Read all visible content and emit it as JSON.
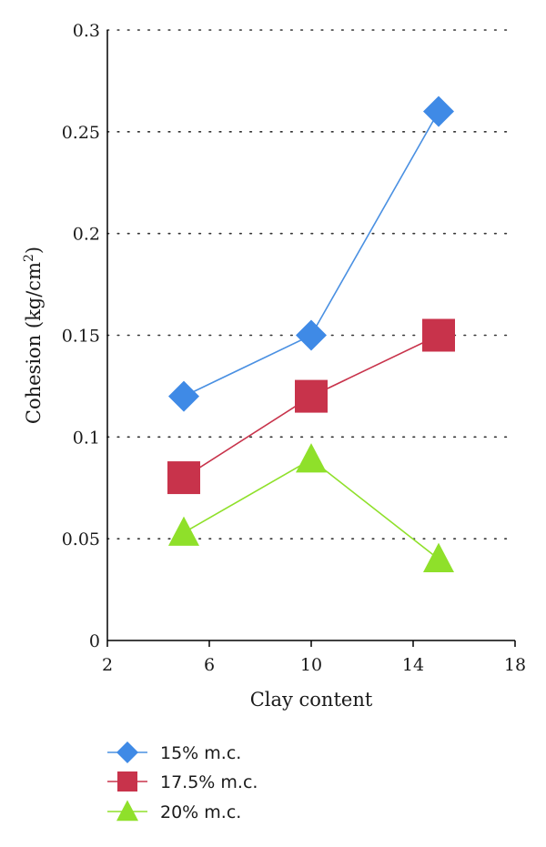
{
  "chart_data": {
    "type": "line",
    "xlabel": "Clay content",
    "ylabel": "Cohesion (kg/cm",
    "ylabel_sup": "2",
    "ylabel_close": ")",
    "xlim": [
      2,
      18
    ],
    "ylim": [
      0,
      0.3
    ],
    "x_ticks": [
      2,
      6,
      10,
      14,
      18
    ],
    "x_tick_labels": [
      "2",
      "6",
      "10",
      "14",
      "18"
    ],
    "y_ticks": [
      0,
      0.05,
      0.1,
      0.15,
      0.2,
      0.25,
      0.3
    ],
    "y_tick_labels": [
      "0",
      "0.05",
      "0.1",
      "0.15",
      "0.2",
      "0.25",
      "0.3"
    ],
    "grid": "horizontal dotted",
    "legend_position": "bottom-left",
    "x": [
      5,
      10,
      15
    ],
    "series": [
      {
        "name": "15% m.c.",
        "values": [
          0.12,
          0.15,
          0.26
        ],
        "marker": "diamond",
        "color": "#3f8ae6",
        "line_color": "#4a90e2"
      },
      {
        "name": "17.5% m.c.",
        "values": [
          0.08,
          0.12,
          0.15
        ],
        "marker": "square",
        "color": "#c8334b",
        "line_color": "#c8334b"
      },
      {
        "name": "20% m.c.",
        "values": [
          0.053,
          0.089,
          0.04
        ],
        "marker": "triangle",
        "color": "#8fe02a",
        "line_color": "#8fe02a"
      }
    ]
  }
}
